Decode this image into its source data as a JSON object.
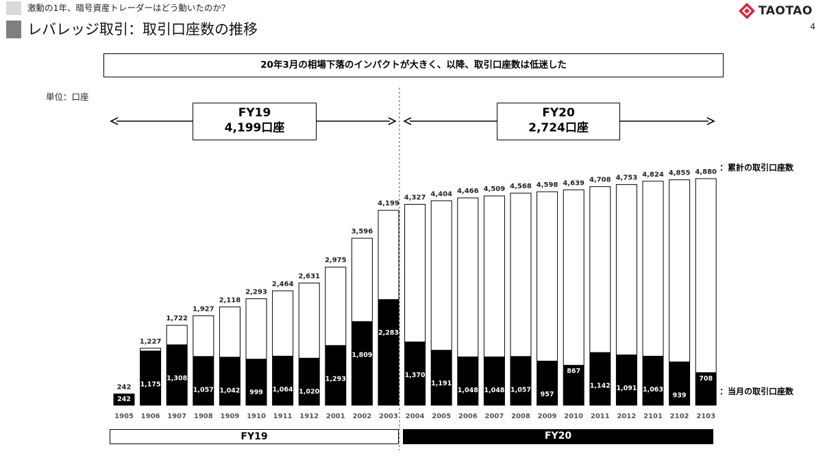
{
  "slide": {
    "section_title": "激動の1年、暗号資産トレーダーはどう動いたのか？",
    "title": "レバレッジ取引：取引口座数の推移",
    "page_number": "4",
    "logo_text": "TAOTAO",
    "headline": "20年3月の相場下落のインパクトが大きく、以降、取引口座数は低迷した",
    "unit": "単位：口座"
  },
  "chart_data": {
    "type": "bar",
    "categories": [
      "1905",
      "1906",
      "1907",
      "1908",
      "1909",
      "1910",
      "1911",
      "1912",
      "2001",
      "2002",
      "2003",
      "2004",
      "2005",
      "2006",
      "2007",
      "2008",
      "2009",
      "2010",
      "2011",
      "2012",
      "2101",
      "2102",
      "2103"
    ],
    "series": [
      {
        "name": "累計の取引口座数",
        "values": [
          242,
          1227,
          1722,
          1927,
          2118,
          2293,
          2464,
          2631,
          2975,
          3596,
          4199,
          4327,
          4404,
          4466,
          4509,
          4568,
          4598,
          4639,
          4708,
          4753,
          4824,
          4855,
          4880
        ]
      },
      {
        "name": "当月の取引口座数",
        "values": [
          242,
          1175,
          1308,
          1057,
          1042,
          999,
          1064,
          1020,
          1293,
          1809,
          2283,
          1370,
          1191,
          1048,
          1048,
          1057,
          957,
          867,
          1142,
          1091,
          1063,
          939,
          708
        ]
      }
    ],
    "legend": {
      "cumulative": "：累計の取引口座数",
      "monthly": "：当月の取引口座数"
    },
    "periods": [
      {
        "label": "FY19",
        "total": "4,199口座",
        "bar_style": "outline"
      },
      {
        "label": "FY20",
        "total": "2,724口座",
        "bar_style": "filled"
      }
    ],
    "ylim": [
      0,
      5000
    ],
    "grid": false
  },
  "colors": {
    "cumulative_fill": "#ffffff",
    "monthly_fill": "#000000",
    "header_square": "#7f7f7f",
    "logo_red": "#d7263d"
  }
}
